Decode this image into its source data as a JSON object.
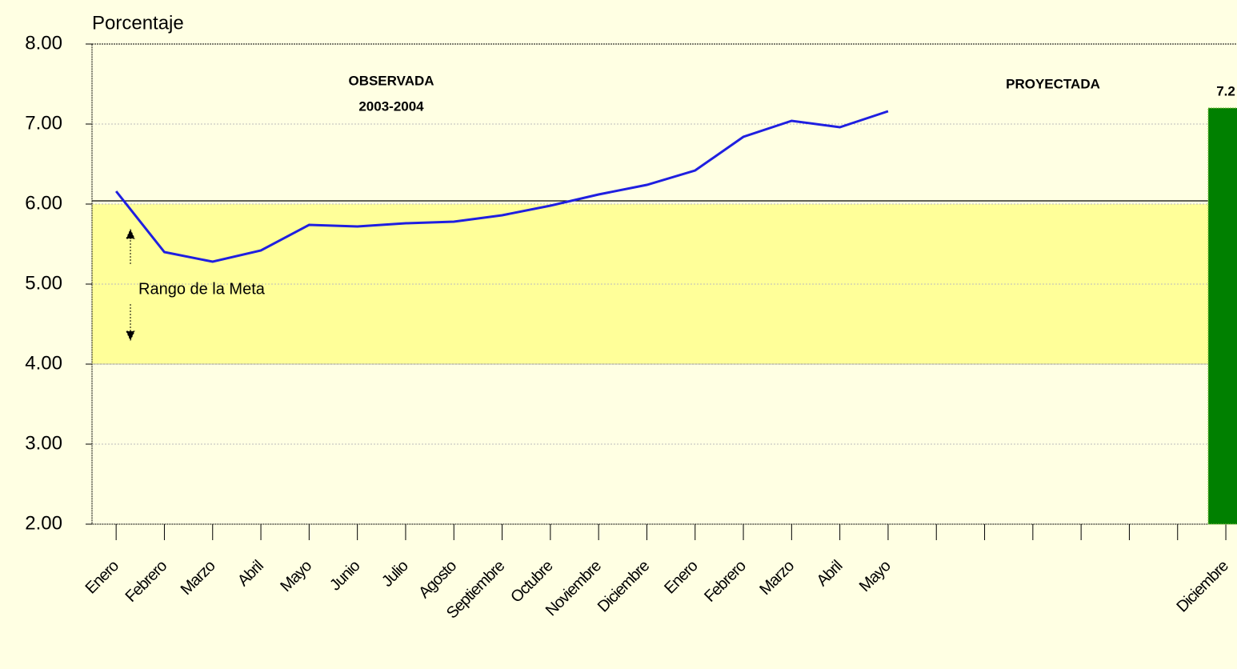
{
  "chart_data": {
    "type": "line",
    "y_label": "Porcentaje",
    "annotations": {
      "observed": "OBSERVADA",
      "observed_period": "2003-2004",
      "projected": "PROYECTADA",
      "band_label": "Rango de la Meta"
    },
    "categories": [
      "Enero",
      "Febrero",
      "Marzo",
      "Abril",
      "Mayo",
      "Junio",
      "Julio",
      "Agosto",
      "Septiembre",
      "Octubre",
      "Noviembre",
      "Diciembre",
      "Enero",
      "Febrero",
      "Marzo",
      "Abril",
      "Mayo",
      null,
      null,
      null,
      null,
      null,
      null,
      "Diciembre"
    ],
    "series": [
      {
        "type": "line",
        "color": "#1f1fe0",
        "values": [
          6.16,
          5.4,
          5.28,
          5.42,
          5.74,
          5.72,
          5.76,
          5.78,
          5.86,
          5.98,
          6.12,
          6.24,
          6.42,
          6.84,
          7.04,
          6.96,
          7.16,
          null,
          null,
          null,
          null,
          null,
          null,
          null
        ]
      },
      {
        "type": "bar",
        "color": "#008000",
        "values": [
          null,
          null,
          null,
          null,
          null,
          null,
          null,
          null,
          null,
          null,
          null,
          null,
          null,
          null,
          null,
          null,
          null,
          null,
          null,
          null,
          null,
          null,
          null,
          7.2
        ]
      }
    ],
    "target_band": [
      4,
      6
    ],
    "band_color": "#ffff99",
    "ylim": [
      2,
      8
    ],
    "yticks": [
      {
        "value": 2,
        "label": "2.00"
      },
      {
        "value": 3,
        "label": "3.00"
      },
      {
        "value": 4,
        "label": "4.00"
      },
      {
        "value": 5,
        "label": "5.00"
      },
      {
        "value": 6,
        "label": "6.00"
      },
      {
        "value": 7,
        "label": "7.00"
      },
      {
        "value": 8,
        "label": "8.00"
      }
    ],
    "grid": true
  }
}
